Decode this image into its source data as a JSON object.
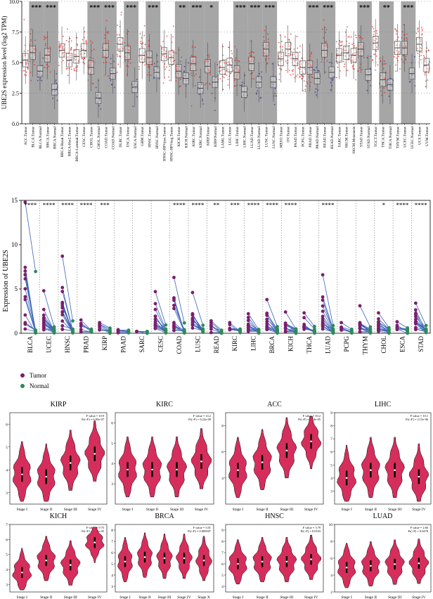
{
  "colors": {
    "tumor": "#e8211f",
    "normal": "#2b2f9c",
    "sig_band": "#a6a6a6",
    "pair_line": "#3a63b8",
    "pair_tumor": "#7a1f6e",
    "pair_normal": "#2e8b57",
    "violin": "#d62e5c"
  },
  "chart_data": [
    {
      "type": "box",
      "ylabel": "UBE2S expression level (log2 TPM)",
      "ylim": [
        0,
        10
      ],
      "yticks": [
        "0.0",
        "2.5",
        "5.0",
        "7.5",
        "10.0"
      ],
      "categories": [
        "ACC.Tumor",
        "BLCA.Tumor",
        "BLCA.Normal",
        "BRCA.Tumor",
        "BRCA.Normal",
        "BRCA-Basal.Tumor",
        "BRCA-Her2.Tumor",
        "BRCA-Luminal.Tumor",
        "CESC.Tumor",
        "CHOL.Tumor",
        "CHOL.Normal",
        "COAD.Tumor",
        "COAD.Normal",
        "DLBC.Tumor",
        "ESCA.Tumor",
        "ESCA.Normal",
        "GBM.Tumor",
        "HNSC.Tumor",
        "HNSC.Normal",
        "HNSC-HPVpos.Tumor",
        "HNSC-HPVneg.Tumor",
        "KICH.Tumor",
        "KICH.Normal",
        "KIRC.Tumor",
        "KIRC.Normal",
        "KIRP.Tumor",
        "KIRP.Normal",
        "LAML.Tumor",
        "LGG.Tumor",
        "LIHC.Tumor",
        "LIHC.Normal",
        "LUAD.Tumor",
        "LUAD.Normal",
        "LUSC.Tumor",
        "LUSC.Normal",
        "MESO.Tumor",
        "OV.Tumor",
        "PAAD.Tumor",
        "PCPG.Tumor",
        "PRAD.Tumor",
        "PRAD.Normal",
        "READ.Tumor",
        "READ.Normal",
        "SARC.Tumor",
        "SKCM.Tumor",
        "SKCM.Metastasis",
        "STAD.Tumor",
        "STAD.Normal",
        "TGCT.Tumor",
        "THCA.Tumor",
        "THCA.Normal",
        "THYM.Tumor",
        "UCEC.Tumor",
        "UCEC.Normal",
        "UCS.Tumor",
        "UVM.Tumor"
      ],
      "group": [
        "T",
        "T",
        "N",
        "T",
        "N",
        "T",
        "T",
        "T",
        "T",
        "T",
        "N",
        "T",
        "N",
        "T",
        "T",
        "N",
        "T",
        "T",
        "N",
        "T",
        "T",
        "T",
        "N",
        "T",
        "N",
        "T",
        "N",
        "T",
        "T",
        "T",
        "N",
        "T",
        "N",
        "T",
        "N",
        "T",
        "T",
        "T",
        "T",
        "T",
        "N",
        "T",
        "N",
        "T",
        "T",
        "T",
        "T",
        "N",
        "T",
        "T",
        "N",
        "T",
        "T",
        "N",
        "T",
        "T"
      ],
      "medians": [
        5.2,
        5.8,
        4.3,
        5.6,
        2.8,
        6.0,
        5.2,
        5.5,
        6.0,
        4.6,
        2.1,
        6.0,
        4.1,
        6.5,
        5.8,
        3.0,
        5.6,
        5.4,
        4.2,
        5.7,
        5.4,
        4.3,
        3.7,
        4.9,
        2.9,
        4.7,
        3.4,
        4.6,
        4.8,
        4.2,
        2.6,
        4.9,
        3.4,
        6.1,
        3.4,
        5.3,
        6.1,
        5.3,
        4.6,
        4.6,
        3.7,
        6.0,
        4.2,
        5.6,
        5.8,
        5.6,
        6.1,
        4.0,
        6.6,
        3.6,
        3.2,
        6.2,
        6.2,
        4.1,
        6.5,
        4.8
      ],
      "significance": [
        {
          "pair": "BLCA",
          "label": "***"
        },
        {
          "pair": "BRCA",
          "label": "***"
        },
        {
          "pair": "CHOL",
          "label": "***"
        },
        {
          "pair": "COAD",
          "label": "***"
        },
        {
          "pair": "ESCA",
          "label": "***"
        },
        {
          "pair": "HNSC",
          "label": "***"
        },
        {
          "pair": "KICH",
          "label": "**"
        },
        {
          "pair": "KIRC",
          "label": "***"
        },
        {
          "pair": "KIRP",
          "label": "*"
        },
        {
          "pair": "LIHC",
          "label": "***"
        },
        {
          "pair": "LUAD",
          "label": "***"
        },
        {
          "pair": "LUSC",
          "label": "***"
        },
        {
          "pair": "PRAD",
          "label": "***"
        },
        {
          "pair": "READ",
          "label": "***"
        },
        {
          "pair": "STAD",
          "label": "***"
        },
        {
          "pair": "THCA",
          "label": "**"
        },
        {
          "pair": "UCEC",
          "label": "***"
        }
      ]
    },
    {
      "type": "paired",
      "ylabel": "Expression of UBE2S",
      "ylim": [
        0,
        15
      ],
      "yticks": [
        "0",
        "5",
        "10",
        "15"
      ],
      "categories": [
        "BLCA",
        "UCEC",
        "HNSC",
        "PRAD",
        "KIRP",
        "PAAD",
        "SARC",
        "CESC",
        "COAD",
        "LUSC",
        "READ",
        "KIRC",
        "LIHC",
        "BRCA",
        "KICH",
        "THCA",
        "LUAD",
        "PCPG",
        "THYM",
        "CHOL",
        "ESCA",
        "STAD"
      ],
      "significance": [
        "****",
        "****",
        "****",
        "****",
        "***",
        "",
        "",
        "",
        "****",
        "****",
        "**",
        "***",
        "****",
        "****",
        "****",
        "",
        "****",
        "",
        "",
        "*",
        "****",
        "****"
      ],
      "max_tumor": [
        14.8,
        4.8,
        8.7,
        1.5,
        1.2,
        0.4,
        0.2,
        4.7,
        6.3,
        4.6,
        1.4,
        1.2,
        2.2,
        3.8,
        2.4,
        2.3,
        6.6,
        1.2,
        3.1,
        2.3,
        1.3,
        3.4
      ],
      "legend": [
        "Tumor",
        "Normal"
      ],
      "legend_position": "bottom-left"
    },
    {
      "type": "violin",
      "panels": [
        {
          "title": "KIRP",
          "stat": "F value = 10.9",
          "p": "Pr(>F) = 6.85e-07",
          "stages": [
            "Stage I",
            "Stage II",
            "Stage III",
            "Stage IV"
          ],
          "medians": [
            3.8,
            3.7,
            4.3,
            4.7
          ],
          "yticks": [
            "3",
            "4",
            "5",
            "6"
          ],
          "ylim": [
            2.5,
            6.5
          ]
        },
        {
          "title": "KIRC",
          "stat": "F value = 14.2",
          "p": "Pr(>F) = 6.22e-09",
          "stages": [
            "Stage I",
            "Stage II",
            "Stage III",
            "Stage IV"
          ],
          "medians": [
            3.7,
            3.7,
            3.7,
            4.1
          ],
          "yticks": [
            "3",
            "4",
            "5",
            "6"
          ],
          "ylim": [
            2.0,
            6.5
          ]
        },
        {
          "title": "ACC",
          "stat": "F value = 10.2",
          "p": "Pr(>F) = 1.14e-05",
          "stages": [
            "Stage I",
            "Stage II",
            "Stage III",
            "Stage IV"
          ],
          "medians": [
            4.6,
            5.2,
            6.1,
            6.8
          ],
          "yticks": [
            "4",
            "6",
            "8"
          ],
          "ylim": [
            2.0,
            9.0
          ]
        },
        {
          "title": "LIHC",
          "stat": "F value = 10.1",
          "p": "Pr(>F) = 2.15e-06",
          "stages": [
            "Stage I",
            "Stage II",
            "Stage III",
            "Stage IV"
          ],
          "medians": [
            4.0,
            4.6,
            4.6,
            4.1
          ],
          "yticks": [
            "3",
            "4",
            "5",
            "6",
            "7",
            "8",
            "9"
          ],
          "ylim": [
            2.0,
            9.0
          ]
        },
        {
          "title": "KICH",
          "stat": "F value = 9.75",
          "p": "Pr(>F) = 2.33e-05",
          "stages": [
            "Stage I",
            "Stage II",
            "Stage III",
            "Stage IV"
          ],
          "medians": [
            3.8,
            4.6,
            4.3,
            5.8
          ],
          "yticks": [
            "3",
            "4",
            "5",
            "6",
            "7"
          ],
          "ylim": [
            2.5,
            7.0
          ]
        },
        {
          "title": "BRCA",
          "stat": "F value = 5.01",
          "p": "Pr(>F) = 0.000507",
          "stages": [
            "Stage I",
            "Stage II",
            "Stage III",
            "Stage IV",
            "Stage X"
          ],
          "medians": [
            5.2,
            5.6,
            5.5,
            5.5,
            5.3
          ],
          "yticks": [
            "3",
            "4",
            "5",
            "6",
            "7",
            "8"
          ],
          "ylim": [
            2.5,
            8.5
          ]
        },
        {
          "title": "HNSC",
          "stat": "F value = 3.79",
          "p": "Pr(>F) = 0.0103",
          "stages": [
            "Stage I",
            "Stage II",
            "Stage III",
            "Stage IV"
          ],
          "medians": [
            6.0,
            6.2,
            6.2,
            6.4
          ],
          "yticks": [
            "4",
            "5",
            "6",
            "7",
            "8",
            "9"
          ],
          "ylim": [
            3.5,
            9.5
          ]
        },
        {
          "title": "LUAD",
          "stat": "F value = 2.66",
          "p": "Pr(>F) = 0.0478",
          "stages": [
            "Stage I",
            "Stage II",
            "Stage III",
            "Stage IV"
          ],
          "medians": [
            4.9,
            5.1,
            5.3,
            5.4
          ],
          "yticks": [
            "2",
            "4",
            "6",
            "8",
            "10"
          ],
          "ylim": [
            2.0,
            10.0
          ]
        }
      ]
    }
  ]
}
